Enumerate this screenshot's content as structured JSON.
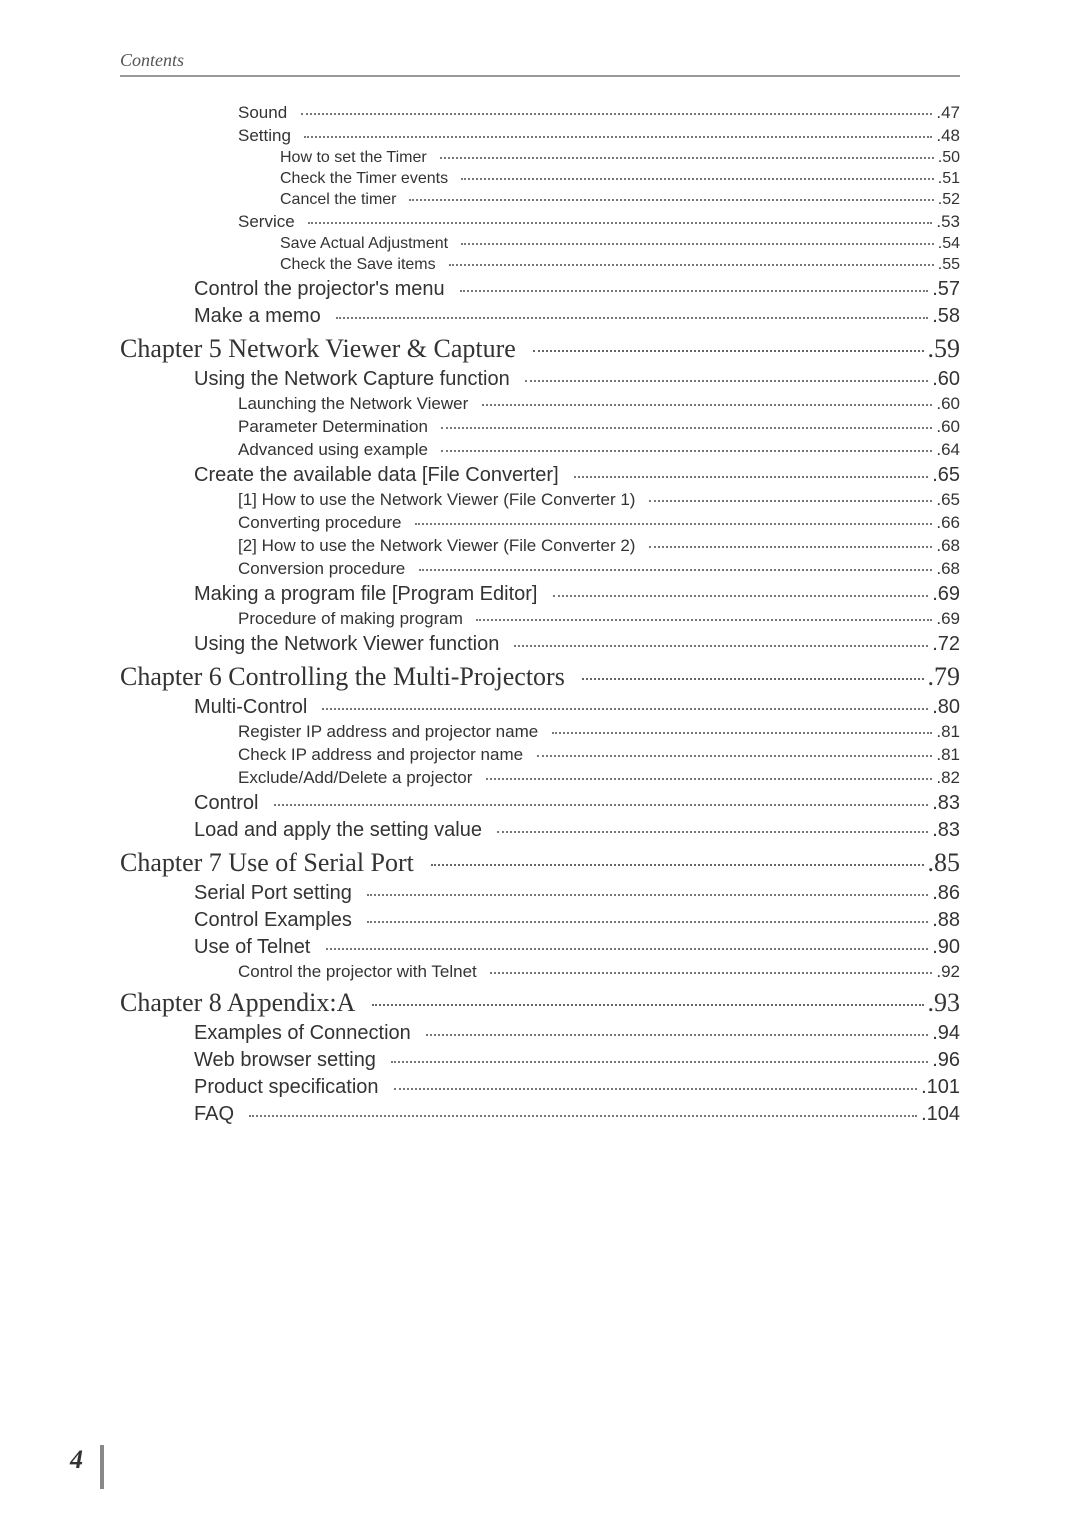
{
  "header": "Contents",
  "pagenum": "4",
  "rows": [
    {
      "level": "level2",
      "label": "Sound",
      "page": ".47"
    },
    {
      "level": "level2",
      "label": "Setting",
      "page": ".48"
    },
    {
      "level": "level3",
      "label": "How to set the Timer",
      "page": ".50"
    },
    {
      "level": "level3",
      "label": "Check the Timer events",
      "page": ".51"
    },
    {
      "level": "level3",
      "label": "Cancel the timer",
      "page": ".52"
    },
    {
      "level": "level2",
      "label": "Service",
      "page": ".53"
    },
    {
      "level": "level3",
      "label": "Save Actual Adjustment",
      "page": ".54"
    },
    {
      "level": "level3",
      "label": "Check the Save items",
      "page": ".55"
    },
    {
      "level": "level1",
      "label": "Control the projector's menu",
      "page": ".57"
    },
    {
      "level": "level1",
      "label": "Make a memo",
      "page": ".58"
    },
    {
      "level": "chapter",
      "label": "Chapter 5 Network Viewer & Capture",
      "page": ".59"
    },
    {
      "level": "level1",
      "label": "Using the Network Capture function",
      "page": ".60"
    },
    {
      "level": "level2",
      "label": "Launching the Network Viewer",
      "page": ".60"
    },
    {
      "level": "level2",
      "label": "Parameter Determination",
      "page": ".60"
    },
    {
      "level": "level2",
      "label": "Advanced using example",
      "page": ".64"
    },
    {
      "level": "level1",
      "label": "Create the available data [File Converter]",
      "page": ".65"
    },
    {
      "level": "level2",
      "label": "[1] How to use the Network Viewer (File Converter 1)",
      "page": ".65"
    },
    {
      "level": "level2",
      "label": "Converting procedure",
      "page": ".66"
    },
    {
      "level": "level2",
      "label": "[2] How to use the Network Viewer (File Converter 2)",
      "page": ".68"
    },
    {
      "level": "level2",
      "label": "Conversion procedure",
      "page": ".68"
    },
    {
      "level": "level1",
      "label": "Making a program file [Program Editor]",
      "page": ".69"
    },
    {
      "level": "level2",
      "label": "Procedure of making program",
      "page": ".69"
    },
    {
      "level": "level1",
      "label": "Using the Network Viewer function",
      "page": ".72"
    },
    {
      "level": "chapter",
      "label": "Chapter 6 Controlling the Multi-Projectors",
      "page": ".79"
    },
    {
      "level": "level1",
      "label": "Multi-Control",
      "page": ".80"
    },
    {
      "level": "level2",
      "label": "Register IP address and projector name",
      "page": ".81"
    },
    {
      "level": "level2",
      "label": "Check IP address and projector name",
      "page": ".81"
    },
    {
      "level": "level2",
      "label": "Exclude/Add/Delete a projector",
      "page": ".82"
    },
    {
      "level": "level1",
      "label": "Control",
      "page": ".83"
    },
    {
      "level": "level1",
      "label": "Load and apply the setting value",
      "page": ".83"
    },
    {
      "level": "chapter",
      "label": "Chapter 7 Use of Serial Port",
      "page": ".85"
    },
    {
      "level": "level1",
      "label": "Serial Port setting",
      "page": ".86"
    },
    {
      "level": "level1",
      "label": "Control Examples",
      "page": ".88"
    },
    {
      "level": "level1",
      "label": "Use of Telnet",
      "page": ".90"
    },
    {
      "level": "level2",
      "label": "Control the projector with Telnet",
      "page": ".92"
    },
    {
      "level": "chapter",
      "label": "Chapter 8 Appendix:A",
      "page": ".93"
    },
    {
      "level": "level1",
      "label": "Examples of Connection",
      "page": ".94"
    },
    {
      "level": "level1",
      "label": "Web browser setting",
      "page": ".96"
    },
    {
      "level": "level1",
      "label": "Product specification",
      "page": ".101"
    },
    {
      "level": "level1",
      "label": "FAQ",
      "page": ".104"
    }
  ]
}
